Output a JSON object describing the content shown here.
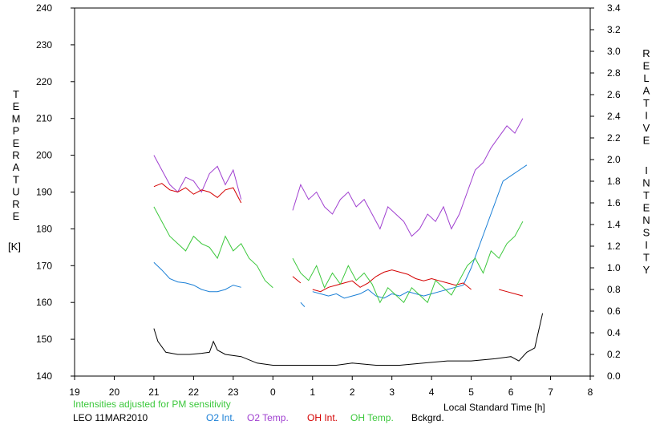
{
  "chart_data": {
    "type": "line",
    "left_axis": {
      "title_letters": [
        "T",
        "E",
        "M",
        "P",
        "E",
        "R",
        "A",
        "T",
        "U",
        "R",
        "E"
      ],
      "unit": "[K]",
      "ylim": [
        140,
        240
      ],
      "ticks": [
        "140",
        "150",
        "160",
        "170",
        "180",
        "190",
        "200",
        "210",
        "220",
        "230",
        "240"
      ]
    },
    "right_axis": {
      "title_letters_1": [
        "R",
        "E",
        "L",
        "A",
        "T",
        "I",
        "V",
        "E"
      ],
      "title_letters_2": [
        "I",
        "N",
        "T",
        "E",
        "N",
        "S",
        "I",
        "T",
        "Y"
      ],
      "ylim": [
        0,
        3.4
      ],
      "ticks": [
        "0.0",
        "0.2",
        "0.4",
        "0.6",
        "0.8",
        "1.0",
        "1.2",
        "1.4",
        "1.6",
        "1.8",
        "2.0",
        "2.2",
        "2.4",
        "2.6",
        "2.8",
        "3.0",
        "3.2",
        "3.4"
      ]
    },
    "x_axis": {
      "title": "Local Standard Time [h]",
      "xlim": [
        19,
        32
      ],
      "ticks": [
        "19",
        "20",
        "21",
        "22",
        "23",
        "0",
        "1",
        "2",
        "3",
        "4",
        "5",
        "6",
        "7",
        "8"
      ]
    },
    "note": "Intensities adjusted for PM sensitivity",
    "station": "LEO 11MAR2010",
    "grid": false,
    "legend_position": "bottom",
    "series": [
      {
        "name": "O2 Int.",
        "axis": "right",
        "color": "#1a7fd6",
        "segments": [
          {
            "x": [
              21.0,
              21.2,
              21.4,
              21.6,
              21.8,
              22.0,
              22.2,
              22.4,
              22.6,
              22.8,
              23.0,
              23.2
            ],
            "y": [
              1.05,
              0.98,
              0.9,
              0.87,
              0.86,
              0.84,
              0.8,
              0.78,
              0.78,
              0.8,
              0.84,
              0.82
            ]
          },
          {
            "x": [
              24.7,
              24.8
            ],
            "y": [
              0.68,
              0.64
            ]
          },
          {
            "x": [
              25.0,
              25.2,
              25.4,
              25.6,
              25.8,
              26.0,
              26.2,
              26.4,
              26.6,
              26.8,
              27.0,
              27.2,
              27.4,
              27.6,
              27.8,
              28.0,
              28.2,
              28.4,
              28.6,
              28.8,
              29.0,
              29.2,
              29.4,
              29.6,
              29.8,
              30.0,
              30.2,
              30.4
            ],
            "y": [
              0.78,
              0.76,
              0.74,
              0.76,
              0.72,
              0.74,
              0.76,
              0.8,
              0.74,
              0.72,
              0.76,
              0.74,
              0.78,
              0.76,
              0.74,
              0.76,
              0.78,
              0.8,
              0.82,
              0.84,
              1.0,
              1.2,
              1.4,
              1.6,
              1.8,
              1.85,
              1.9,
              1.95
            ]
          }
        ]
      },
      {
        "name": "O2 Temp.",
        "axis": "left",
        "color": "#a040d0",
        "segments": [
          {
            "x": [
              21.0,
              21.2,
              21.4,
              21.6,
              21.8,
              22.0,
              22.2,
              22.4,
              22.6,
              22.8,
              23.0,
              23.2
            ],
            "y": [
              200,
              196,
              192,
              190,
              194,
              193,
              190,
              195,
              197,
              192,
              196,
              188
            ]
          },
          {
            "x": [
              24.5,
              24.7,
              24.9,
              25.1,
              25.3,
              25.5,
              25.7,
              25.9,
              26.1,
              26.3,
              26.5,
              26.7,
              26.9,
              27.1,
              27.3,
              27.5,
              27.7,
              27.9,
              28.1,
              28.3,
              28.5,
              28.7,
              28.9,
              29.1,
              29.3,
              29.5,
              29.7,
              29.9,
              30.1,
              30.3
            ],
            "y": [
              185,
              192,
              188,
              190,
              186,
              184,
              188,
              190,
              186,
              188,
              184,
              180,
              186,
              184,
              182,
              178,
              180,
              184,
              182,
              186,
              180,
              184,
              190,
              196,
              198,
              202,
              205,
              208,
              206,
              210
            ]
          }
        ]
      },
      {
        "name": "OH Int.",
        "axis": "right",
        "color": "#d40000",
        "segments": [
          {
            "x": [
              21.0,
              21.2,
              21.4,
              21.6,
              21.8,
              22.0,
              22.2,
              22.4,
              22.6,
              22.8,
              23.0,
              23.2
            ],
            "y": [
              1.75,
              1.78,
              1.72,
              1.7,
              1.74,
              1.68,
              1.72,
              1.7,
              1.65,
              1.72,
              1.74,
              1.6
            ]
          },
          {
            "x": [
              24.5,
              24.7
            ],
            "y": [
              0.92,
              0.86
            ]
          },
          {
            "x": [
              25.0,
              25.2,
              25.4,
              25.6,
              25.8,
              26.0,
              26.2,
              26.4,
              26.6,
              26.8,
              27.0,
              27.2,
              27.4,
              27.6,
              27.8,
              28.0,
              28.2,
              28.4,
              28.6,
              28.8,
              29.0
            ],
            "y": [
              0.8,
              0.78,
              0.82,
              0.84,
              0.86,
              0.88,
              0.82,
              0.86,
              0.92,
              0.96,
              0.98,
              0.96,
              0.94,
              0.9,
              0.88,
              0.9,
              0.88,
              0.86,
              0.84,
              0.86,
              0.8
            ]
          },
          {
            "x": [
              29.7,
              29.9,
              30.1,
              30.3
            ],
            "y": [
              0.8,
              0.78,
              0.76,
              0.74
            ]
          }
        ]
      },
      {
        "name": "OH Temp.",
        "axis": "left",
        "color": "#3cc83c",
        "segments": [
          {
            "x": [
              21.0,
              21.2,
              21.4,
              21.6,
              21.8,
              22.0,
              22.2,
              22.4,
              22.6,
              22.8,
              23.0,
              23.2,
              23.4,
              23.6,
              23.8,
              24.0
            ],
            "y": [
              186,
              182,
              178,
              176,
              174,
              178,
              176,
              175,
              172,
              178,
              174,
              176,
              172,
              170,
              166,
              164
            ]
          },
          {
            "x": [
              24.5,
              24.7,
              24.9,
              25.1,
              25.3,
              25.5,
              25.7,
              25.9,
              26.1,
              26.3,
              26.5,
              26.7,
              26.9,
              27.1,
              27.3,
              27.5,
              27.7,
              27.9,
              28.1,
              28.3,
              28.5,
              28.7,
              28.9,
              29.1,
              29.3,
              29.5,
              29.7,
              29.9,
              30.1,
              30.3
            ],
            "y": [
              172,
              168,
              166,
              170,
              164,
              168,
              165,
              170,
              166,
              168,
              165,
              160,
              164,
              162,
              160,
              164,
              162,
              160,
              166,
              164,
              162,
              166,
              170,
              172,
              168,
              174,
              172,
              176,
              178,
              182
            ]
          }
        ]
      },
      {
        "name": "Bckgrd.",
        "axis": "right",
        "color": "#000000",
        "segments": [
          {
            "x": [
              21.0,
              21.1,
              21.3,
              21.6,
              21.9,
              22.2,
              22.4,
              22.5,
              22.6,
              22.8,
              23.2,
              23.6,
              24.0,
              24.4,
              25.0,
              25.6,
              26.0,
              26.6,
              27.2,
              27.8,
              28.4,
              29.0,
              29.6,
              30.0,
              30.2,
              30.4,
              30.6,
              30.8
            ],
            "y": [
              0.44,
              0.32,
              0.22,
              0.2,
              0.2,
              0.21,
              0.22,
              0.32,
              0.24,
              0.2,
              0.18,
              0.12,
              0.1,
              0.1,
              0.1,
              0.1,
              0.12,
              0.1,
              0.1,
              0.12,
              0.14,
              0.14,
              0.16,
              0.18,
              0.14,
              0.22,
              0.26,
              0.58
            ]
          }
        ]
      }
    ]
  }
}
